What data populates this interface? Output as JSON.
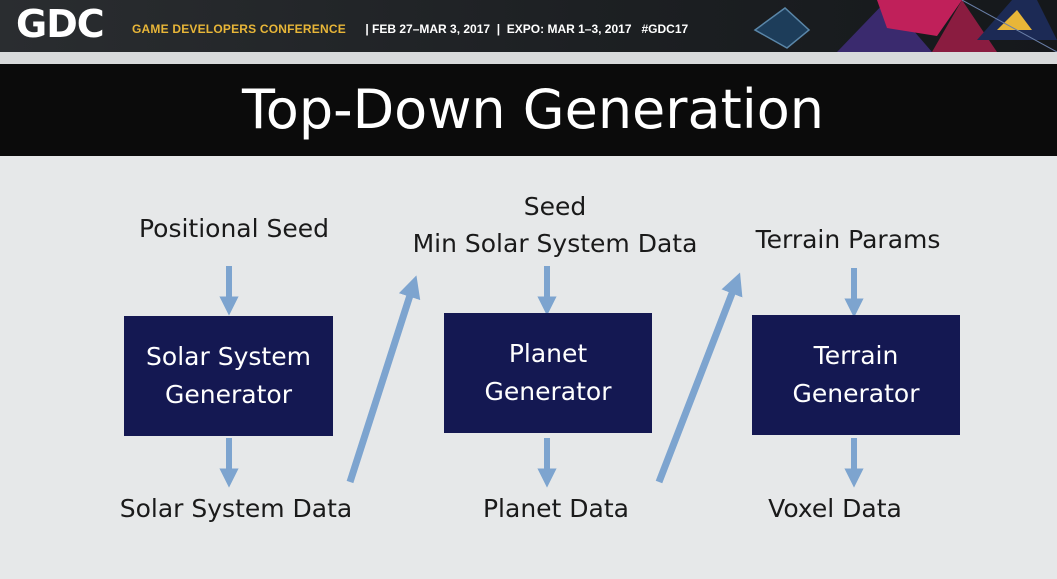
{
  "header": {
    "logo": "GDC",
    "conference_name": "GAME DEVELOPERS CONFERENCE",
    "event_info": " | FEB 27–MAR 3, 2017  |  EXPO: MAR 1–3, 2017   #GDC17"
  },
  "slide": {
    "title": "Top-Down Generation"
  },
  "diagram": {
    "columns": [
      {
        "input": "Positional Seed",
        "box_line1": "Solar System",
        "box_line2": "Generator",
        "output": "Solar System Data"
      },
      {
        "input_line1": "Seed",
        "input_line2": "Min Solar System Data",
        "box_line1": "Planet",
        "box_line2": "Generator",
        "output": "Planet Data"
      },
      {
        "input": "Terrain Params",
        "box_line1": "Terrain",
        "box_line2": "Generator",
        "output": "Voxel Data"
      }
    ],
    "colors": {
      "box": "#141852",
      "arrow": "#7da4cf",
      "accent": "#e8b638"
    }
  }
}
